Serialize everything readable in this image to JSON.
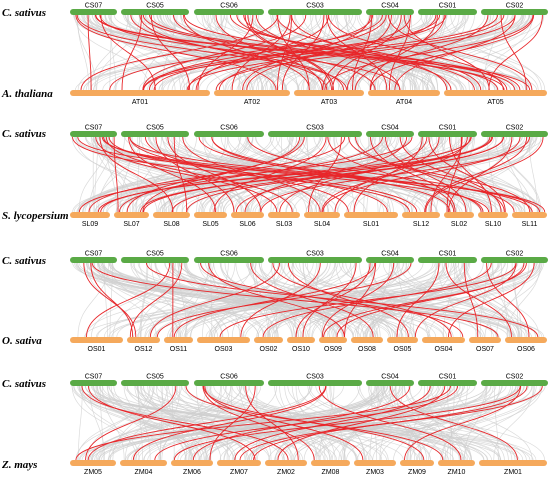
{
  "colors": {
    "top_bar": "#5aaa46",
    "bottom_bar": "#f5a95c",
    "background_link": "#cfcfcf",
    "highlight_link": "#e8262a"
  },
  "panels": [
    {
      "top_species": "C. sativus",
      "bottom_species": "A. thaliana",
      "top_chromosomes": [
        "CS07",
        "CS05",
        "CS06",
        "CS03",
        "CS04",
        "CS01",
        "CS02"
      ],
      "bottom_chromosomes": [
        "AT01",
        "AT02",
        "AT03",
        "AT04",
        "AT05"
      ]
    },
    {
      "top_species": "C. sativus",
      "bottom_species": "S. lycopersium",
      "top_chromosomes": [
        "CS07",
        "CS05",
        "CS06",
        "CS03",
        "CS04",
        "CS01",
        "CS02"
      ],
      "bottom_chromosomes": [
        "SL09",
        "SL07",
        "SL08",
        "SL05",
        "SL06",
        "SL03",
        "SL04",
        "SL01",
        "SL12",
        "SL02",
        "SL10",
        "SL11"
      ]
    },
    {
      "top_species": "C. sativus",
      "bottom_species": "O. sativa",
      "top_chromosomes": [
        "CS07",
        "CS05",
        "CS06",
        "CS03",
        "CS04",
        "CS01",
        "CS02"
      ],
      "bottom_chromosomes": [
        "OS01",
        "OS12",
        "OS11",
        "OS03",
        "OS02",
        "OS10",
        "OS09",
        "OS08",
        "OS05",
        "OS04",
        "OS07",
        "OS06"
      ]
    },
    {
      "top_species": "C. sativus",
      "bottom_species": "Z. mays",
      "top_chromosomes": [
        "CS07",
        "CS05",
        "CS06",
        "CS03",
        "CS04",
        "CS01",
        "CS02"
      ],
      "bottom_chromosomes": [
        "ZM05",
        "ZM04",
        "ZM06",
        "ZM07",
        "ZM02",
        "ZM08",
        "ZM03",
        "ZM09",
        "ZM10",
        "ZM01"
      ]
    }
  ]
}
